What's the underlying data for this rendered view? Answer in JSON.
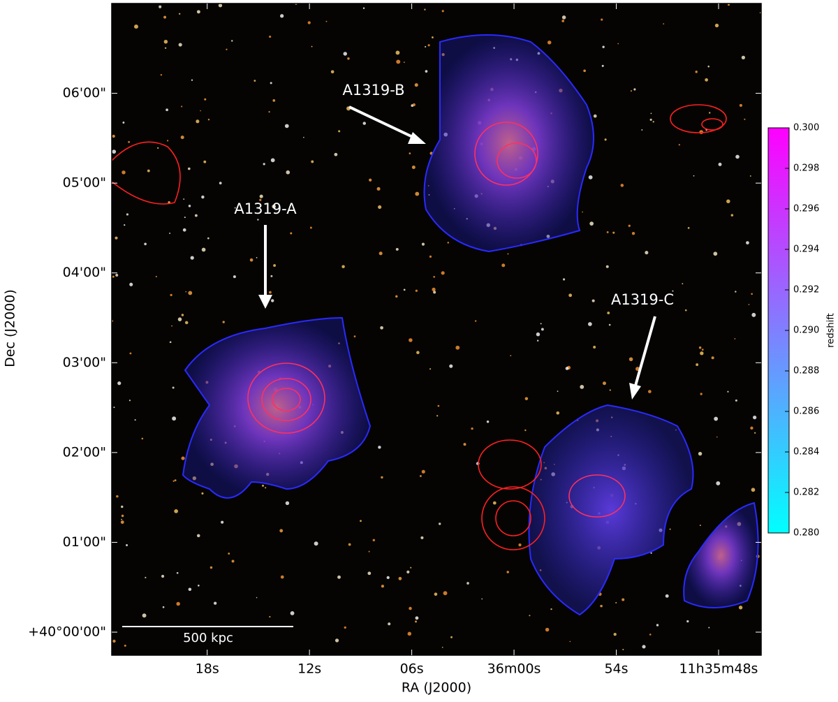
{
  "chart_data": {
    "type": "image",
    "xlabel": "RA (J2000)",
    "ylabel": "Dec (J2000)",
    "xlim": [
      2183.6,
      2145.5
    ],
    "xticks": [
      {
        "value": 2178,
        "label": "18s"
      },
      {
        "value": 2172,
        "label": "12s"
      },
      {
        "value": 2166,
        "label": "06s"
      },
      {
        "value": 2160,
        "label": "36m00s"
      },
      {
        "value": 2154,
        "label": "54s"
      },
      {
        "value": 2148,
        "label": "11h35m48s"
      }
    ],
    "ylim": [
      -15.4,
      420
    ],
    "yticks": [
      {
        "value": 0,
        "label": "+40°00'00\""
      },
      {
        "value": 60,
        "label": "01'00\""
      },
      {
        "value": 120,
        "label": "02'00\""
      },
      {
        "value": 180,
        "label": "03'00\""
      },
      {
        "value": 240,
        "label": "04'00\""
      },
      {
        "value": 300,
        "label": "05'00\""
      },
      {
        "value": 360,
        "label": "06'00\""
      }
    ],
    "colorbar": {
      "label": "redshift",
      "clim": [
        0.28,
        0.3
      ],
      "colors": [
        "#00ffff",
        "#ff00ff"
      ],
      "ticks": [
        {
          "value": 0.28,
          "label": "0.280"
        },
        {
          "value": 0.282,
          "label": "0.282"
        },
        {
          "value": 0.284,
          "label": "0.284"
        },
        {
          "value": 0.286,
          "label": "0.286"
        },
        {
          "value": 0.288,
          "label": "0.288"
        },
        {
          "value": 0.29,
          "label": "0.290"
        },
        {
          "value": 0.292,
          "label": "0.292"
        },
        {
          "value": 0.294,
          "label": "0.294"
        },
        {
          "value": 0.296,
          "label": "0.296"
        },
        {
          "value": 0.298,
          "label": "0.298"
        },
        {
          "value": 0.3,
          "label": "0.300"
        }
      ]
    },
    "annotations": [
      "A1319-A",
      "A1319-B",
      "A1319-C"
    ],
    "scale_bar": "500 kpc"
  }
}
